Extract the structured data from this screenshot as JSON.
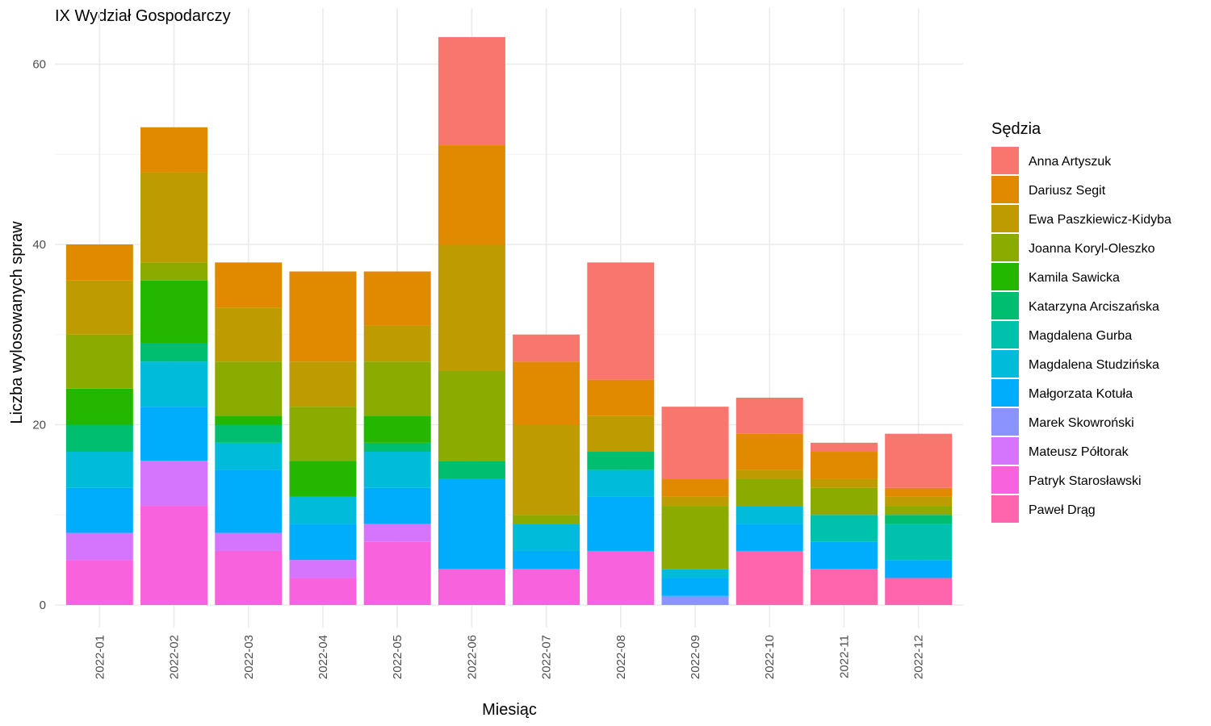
{
  "chart_data": {
    "type": "bar",
    "stacked": true,
    "title": "IX Wydział Gospodarczy",
    "xlabel": "Miesiąc",
    "ylabel": "Liczba wylosowanych spraw",
    "ylim": [
      0,
      63
    ],
    "yticks": [
      0,
      20,
      40,
      60
    ],
    "grid": true,
    "legend_title": "Sędzia",
    "legend_position": "right",
    "categories": [
      "2022-01",
      "2022-02",
      "2022-03",
      "2022-04",
      "2022-05",
      "2022-06",
      "2022-07",
      "2022-08",
      "2022-09",
      "2022-10",
      "2022-11",
      "2022-12"
    ],
    "series": [
      {
        "name": "Anna Artyszuk",
        "color": "#F8766D",
        "values": [
          0,
          0,
          0,
          0,
          0,
          12,
          3,
          13,
          8,
          4,
          1,
          6
        ]
      },
      {
        "name": "Dariusz Segit",
        "color": "#E18A00",
        "values": [
          4,
          5,
          5,
          10,
          6,
          11,
          7,
          4,
          2,
          4,
          3,
          1
        ]
      },
      {
        "name": "Ewa Paszkiewicz-Kidyba",
        "color": "#BE9C00",
        "values": [
          6,
          10,
          6,
          5,
          4,
          14,
          10,
          4,
          1,
          1,
          1,
          1
        ]
      },
      {
        "name": "Joanna Koryl-Oleszko",
        "color": "#8CAB00",
        "values": [
          6,
          2,
          6,
          6,
          6,
          10,
          1,
          0,
          7,
          3,
          3,
          1
        ]
      },
      {
        "name": "Kamila Sawicka",
        "color": "#24B700",
        "values": [
          4,
          7,
          1,
          4,
          3,
          0,
          0,
          0,
          0,
          0,
          0,
          0
        ]
      },
      {
        "name": "Katarzyna Arciszańska",
        "color": "#00BE70",
        "values": [
          3,
          2,
          2,
          0,
          1,
          2,
          0,
          2,
          0,
          0,
          0,
          1
        ]
      },
      {
        "name": "Magdalena Gurba",
        "color": "#00C1AB",
        "values": [
          0,
          0,
          0,
          0,
          0,
          0,
          0,
          0,
          0,
          0,
          3,
          4
        ]
      },
      {
        "name": "Magdalena Studzińska",
        "color": "#00BBDA",
        "values": [
          4,
          5,
          3,
          3,
          4,
          0,
          3,
          3,
          1,
          2,
          0,
          0
        ]
      },
      {
        "name": "Małgorzata Kotuła",
        "color": "#00ACFC",
        "values": [
          5,
          6,
          7,
          4,
          4,
          10,
          2,
          6,
          2,
          3,
          3,
          2
        ]
      },
      {
        "name": "Marek Skowroński",
        "color": "#8B93FF",
        "values": [
          0,
          0,
          0,
          0,
          0,
          0,
          0,
          0,
          1,
          0,
          0,
          0
        ]
      },
      {
        "name": "Mateusz Półtorak",
        "color": "#D575FE",
        "values": [
          3,
          5,
          2,
          2,
          2,
          0,
          0,
          0,
          0,
          0,
          0,
          0
        ]
      },
      {
        "name": "Patryk Starosławski",
        "color": "#F962DD",
        "values": [
          5,
          11,
          6,
          3,
          7,
          4,
          4,
          6,
          0,
          0,
          0,
          0
        ]
      },
      {
        "name": "Paweł Drąg",
        "color": "#FF65AC",
        "values": [
          0,
          0,
          0,
          0,
          0,
          0,
          0,
          0,
          0,
          6,
          4,
          3
        ]
      }
    ]
  }
}
